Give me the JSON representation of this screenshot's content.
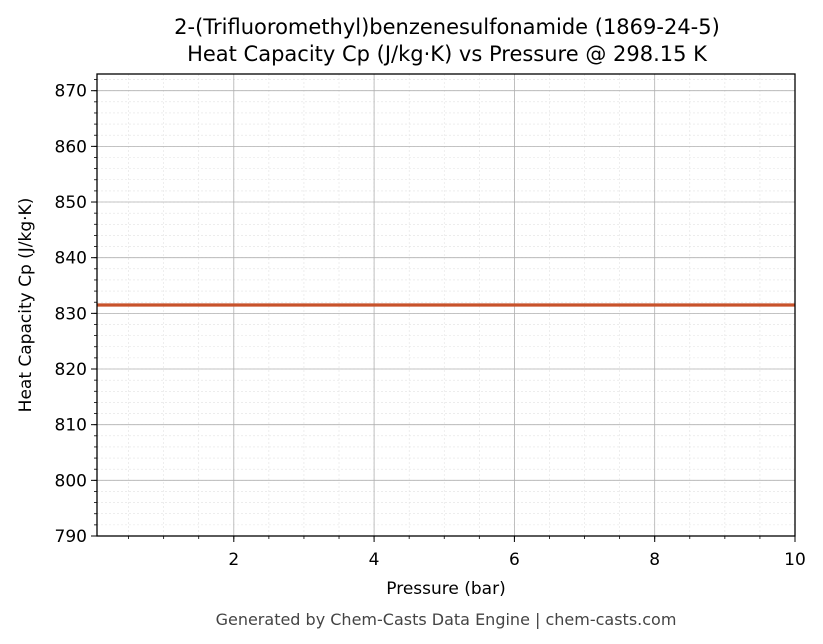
{
  "chart_data": {
    "type": "line",
    "title": "2-(Trifluoromethyl)benzenesulfonamide (1869-24-5)",
    "subtitle": "Heat Capacity Cp (J/kg·K) vs Pressure @ 298.15 K",
    "xlabel": "Pressure (bar)",
    "ylabel": "Heat Capacity Cp (J/kg·K)",
    "xlim": [
      0.05,
      10
    ],
    "ylim": [
      790,
      873
    ],
    "xticks": [
      2,
      4,
      6,
      8,
      10
    ],
    "yticks": [
      790,
      800,
      810,
      820,
      830,
      840,
      850,
      860,
      870
    ],
    "x_minor_step": 0.5,
    "y_minor_step": 2,
    "grid": true,
    "series": [
      {
        "color": "#c8522a",
        "x": [
          0.05,
          1,
          2,
          3,
          4,
          5,
          6,
          7,
          8,
          9,
          10
        ],
        "y": [
          831.5,
          831.5,
          831.5,
          831.5,
          831.5,
          831.5,
          831.5,
          831.5,
          831.5,
          831.5,
          831.5
        ]
      }
    ],
    "footer": "Generated by Chem-Casts Data Engine | chem-casts.com"
  }
}
